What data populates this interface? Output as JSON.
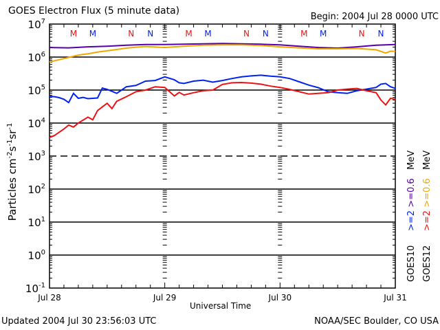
{
  "header": {
    "title": "GOES Electron Flux (5 minute data)",
    "begin": "Begin: 2004 Jul 28 0000 UTC"
  },
  "footer": {
    "updated": "Updated 2004 Jul 30 23:56:03 UTC",
    "credit": "NOAA/SEC Boulder, CO USA"
  },
  "colors": {
    "goes10_ge2": "#0022ee",
    "goes10_ge06": "#5500aa",
    "goes12_ge2": "#ee1111",
    "goes12_ge06": "#f0a800"
  },
  "legend": {
    "goes10": {
      "sat": "GOES10",
      "ch1": ">=2",
      "ch2": ">=0.6",
      "unit": "MeV"
    },
    "goes12": {
      "sat": "GOES12",
      "ch1": ">=2",
      "ch2": ">=0.6",
      "unit": "MeV"
    }
  },
  "chart_data": {
    "type": "line",
    "title": "GOES Electron Flux (5 minute data)",
    "xlabel": "Universal Time",
    "ylabel": "Particles cm-2 s-1 sr-1",
    "ylabel_parts": {
      "base": "Particles cm",
      "e1": "-2",
      "s": "s",
      "e2": "-1",
      "sr": "sr",
      "e3": "-1"
    },
    "yscale": "log",
    "ylim_log10": [
      -1,
      7
    ],
    "xlim_hours": [
      0,
      72
    ],
    "x_unit": "hours since 2004 Jul 28 00:00 UTC",
    "x_ticks": [
      {
        "hour": 0,
        "label": "Jul 28"
      },
      {
        "hour": 24,
        "label": "Jul 29"
      },
      {
        "hour": 48,
        "label": "Jul 30"
      },
      {
        "hour": 72,
        "label": "Jul 31"
      }
    ],
    "y_ticks": [
      {
        "exp": 7,
        "base": "10",
        "sup": "7"
      },
      {
        "exp": 6,
        "base": "10",
        "sup": "6"
      },
      {
        "exp": 5,
        "base": "10",
        "sup": "5"
      },
      {
        "exp": 4,
        "base": "10",
        "sup": "4"
      },
      {
        "exp": 3,
        "base": "10",
        "sup": "3"
      },
      {
        "exp": 2,
        "base": "10",
        "sup": "2"
      },
      {
        "exp": 1,
        "base": "10",
        "sup": "1"
      },
      {
        "exp": 0,
        "base": "10",
        "sup": "0"
      },
      {
        "exp": -1,
        "base": "10",
        "sup": "-1"
      }
    ],
    "gridlines": [
      {
        "exp": 6,
        "style": "solid"
      },
      {
        "exp": 5,
        "style": "solid"
      },
      {
        "exp": 4,
        "style": "solid"
      },
      {
        "exp": 3,
        "style": "dashed"
      },
      {
        "exp": 2,
        "style": "solid"
      },
      {
        "exp": 1,
        "style": "solid"
      },
      {
        "exp": 0,
        "style": "solid"
      }
    ],
    "markers": [
      {
        "hour": 5,
        "label": "M",
        "sat": "GOES12"
      },
      {
        "hour": 9,
        "label": "M",
        "sat": "GOES10"
      },
      {
        "hour": 17,
        "label": "N",
        "sat": "GOES12"
      },
      {
        "hour": 21,
        "label": "N",
        "sat": "GOES10"
      },
      {
        "hour": 29,
        "label": "M",
        "sat": "GOES12"
      },
      {
        "hour": 33,
        "label": "M",
        "sat": "GOES10"
      },
      {
        "hour": 41,
        "label": "N",
        "sat": "GOES12"
      },
      {
        "hour": 45,
        "label": "N",
        "sat": "GOES10"
      },
      {
        "hour": 53,
        "label": "M",
        "sat": "GOES12"
      },
      {
        "hour": 57,
        "label": "M",
        "sat": "GOES10"
      },
      {
        "hour": 65,
        "label": "N",
        "sat": "GOES12"
      },
      {
        "hour": 69,
        "label": "N",
        "sat": "GOES10"
      }
    ],
    "legend_position": "right",
    "series": [
      {
        "name": "GOES10 >=0.6 MeV",
        "color": "#5500aa",
        "hours": [
          0,
          4,
          8,
          12,
          16,
          20,
          24,
          28,
          32,
          36,
          40,
          44,
          48,
          52,
          56,
          60,
          64,
          68,
          72
        ],
        "log10_flux": [
          6.29,
          6.28,
          6.31,
          6.33,
          6.36,
          6.38,
          6.38,
          6.39,
          6.4,
          6.41,
          6.4,
          6.39,
          6.37,
          6.33,
          6.29,
          6.27,
          6.31,
          6.36,
          6.38
        ]
      },
      {
        "name": "GOES12 >=0.6 MeV",
        "color": "#f0a800",
        "hours": [
          0,
          2,
          4,
          6,
          8,
          10,
          12,
          14,
          16,
          18,
          20,
          24,
          28,
          32,
          36,
          40,
          44,
          48,
          52,
          56,
          60,
          64,
          68,
          70,
          71,
          72
        ],
        "log10_flux": [
          5.85,
          5.92,
          5.99,
          6.06,
          6.1,
          6.15,
          6.19,
          6.23,
          6.27,
          6.3,
          6.32,
          6.29,
          6.33,
          6.36,
          6.37,
          6.37,
          6.35,
          6.31,
          6.28,
          6.25,
          6.25,
          6.26,
          6.22,
          6.12,
          6.18,
          6.17
        ]
      },
      {
        "name": "GOES10 >=2 MeV",
        "color": "#0022ee",
        "hours": [
          0,
          1,
          2,
          3,
          4,
          5,
          6,
          7,
          8,
          10,
          11,
          12,
          14,
          15,
          16,
          18,
          20,
          22,
          24,
          26,
          27,
          28,
          30,
          32,
          34,
          36,
          38,
          40,
          42,
          44,
          46,
          48,
          50,
          52,
          54,
          56,
          58,
          60,
          62,
          64,
          66,
          68,
          69,
          70,
          71,
          72
        ],
        "log10_flux": [
          4.81,
          4.8,
          4.77,
          4.72,
          4.62,
          4.9,
          4.75,
          4.78,
          4.74,
          4.76,
          5.06,
          5.02,
          4.9,
          5.0,
          5.1,
          5.14,
          5.27,
          5.29,
          5.4,
          5.31,
          5.22,
          5.2,
          5.27,
          5.3,
          5.24,
          5.29,
          5.35,
          5.4,
          5.43,
          5.45,
          5.42,
          5.4,
          5.35,
          5.25,
          5.15,
          5.07,
          4.95,
          4.92,
          4.9,
          4.98,
          5.03,
          5.08,
          5.18,
          5.2,
          5.1,
          5.05
        ]
      },
      {
        "name": "GOES12 >=2 MeV",
        "color": "#ee1111",
        "hours": [
          0,
          1,
          2,
          3,
          4,
          5,
          6,
          8,
          9,
          10,
          12,
          13,
          14,
          16,
          18,
          20,
          22,
          24,
          25,
          26,
          27,
          28,
          30,
          32,
          34,
          36,
          38,
          40,
          42,
          44,
          46,
          48,
          50,
          52,
          54,
          56,
          58,
          60,
          62,
          64,
          66,
          68,
          69,
          70,
          71,
          72
        ],
        "log10_flux": [
          3.56,
          3.62,
          3.72,
          3.82,
          3.94,
          3.88,
          4.0,
          4.18,
          4.1,
          4.38,
          4.6,
          4.44,
          4.66,
          4.8,
          4.95,
          5.0,
          5.1,
          5.08,
          4.95,
          4.82,
          4.93,
          4.85,
          4.92,
          4.98,
          5.0,
          5.17,
          5.22,
          5.23,
          5.21,
          5.18,
          5.12,
          5.08,
          5.02,
          4.95,
          4.88,
          4.9,
          4.92,
          5.0,
          5.03,
          5.05,
          4.98,
          4.92,
          4.7,
          4.55,
          4.75,
          4.72
        ]
      }
    ]
  }
}
